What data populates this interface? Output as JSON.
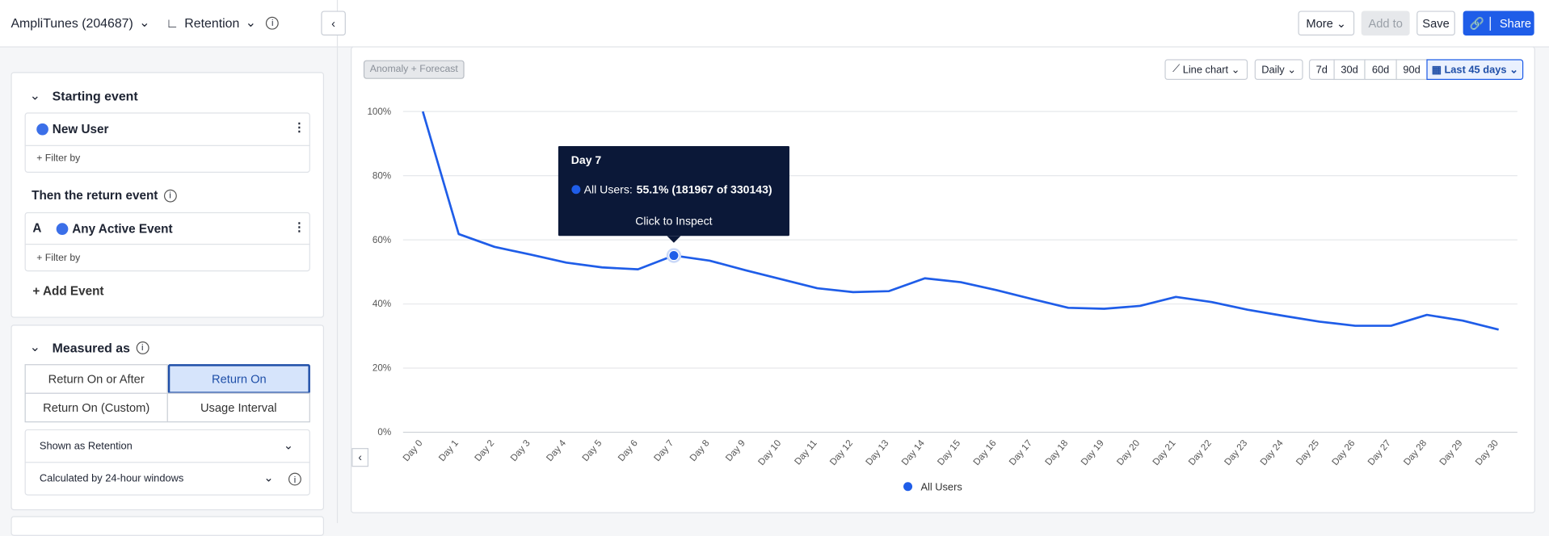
{
  "topbar": {
    "project": "AmpliTunes (204687)",
    "chart_name": "Retention",
    "buttons": [
      "More",
      "Add to",
      "Save",
      "Share"
    ]
  },
  "sidebar": {
    "starting_event": {
      "heading": "Starting event",
      "event": "New User",
      "filter": "+ Filter by"
    },
    "return_event": {
      "heading": "Then the return event",
      "letter": "A",
      "event": "Any Active Event",
      "filter": "+ Filter by",
      "add": "+ Add Event"
    },
    "measured_as": {
      "heading": "Measured as",
      "options": [
        "Return On or After",
        "Return On",
        "Return On (Custom)",
        "Usage Interval"
      ],
      "shown_as": "Shown as Retention",
      "calculated_by": "Calculated by 24-hour windows"
    }
  },
  "controls": {
    "anomaly": "Anomaly + Forecast",
    "chart_type": "Line chart",
    "interval": "Daily",
    "ranges": [
      "7d",
      "30d",
      "60d",
      "90d"
    ],
    "active_range": "Last 45 days"
  },
  "chart_data": {
    "type": "line",
    "categories": [
      "Day 0",
      "Day 1",
      "Day 2",
      "Day 3",
      "Day 4",
      "Day 5",
      "Day 6",
      "Day 7",
      "Day 8",
      "Day 9",
      "Day 10",
      "Day 11",
      "Day 12",
      "Day 13",
      "Day 14",
      "Day 15",
      "Day 16",
      "Day 17",
      "Day 18",
      "Day 19",
      "Day 20",
      "Day 21",
      "Day 22",
      "Day 23",
      "Day 24",
      "Day 25",
      "Day 26",
      "Day 27",
      "Day 28",
      "Day 29",
      "Day 30"
    ],
    "series": [
      {
        "name": "All Users",
        "color": "#1f5de8",
        "values": [
          100,
          61.8,
          57.8,
          55.4,
          52.9,
          51.4,
          50.8,
          55.1,
          53.5,
          50.5,
          47.7,
          44.9,
          43.7,
          44,
          48,
          46.8,
          44.3,
          41.5,
          38.8,
          38.5,
          39.4,
          42.2,
          40.6,
          38.2,
          36.3,
          34.5,
          33.2,
          33.2,
          36.6,
          34.8,
          32
        ]
      }
    ],
    "ylim": [
      0,
      100
    ],
    "yticks": [
      {
        "value": 0,
        "label": "0%"
      },
      {
        "value": 20,
        "label": "20%"
      },
      {
        "value": 40,
        "label": "40%"
      },
      {
        "value": 60,
        "label": "60%"
      },
      {
        "value": 80,
        "label": "80%"
      },
      {
        "value": 100,
        "label": "100%"
      }
    ],
    "grid": true,
    "tooltip": {
      "title": "Day 7",
      "series_label": "All Users:",
      "text": "55.1% (181967 of 330143)",
      "action": "Click to Inspect"
    }
  }
}
